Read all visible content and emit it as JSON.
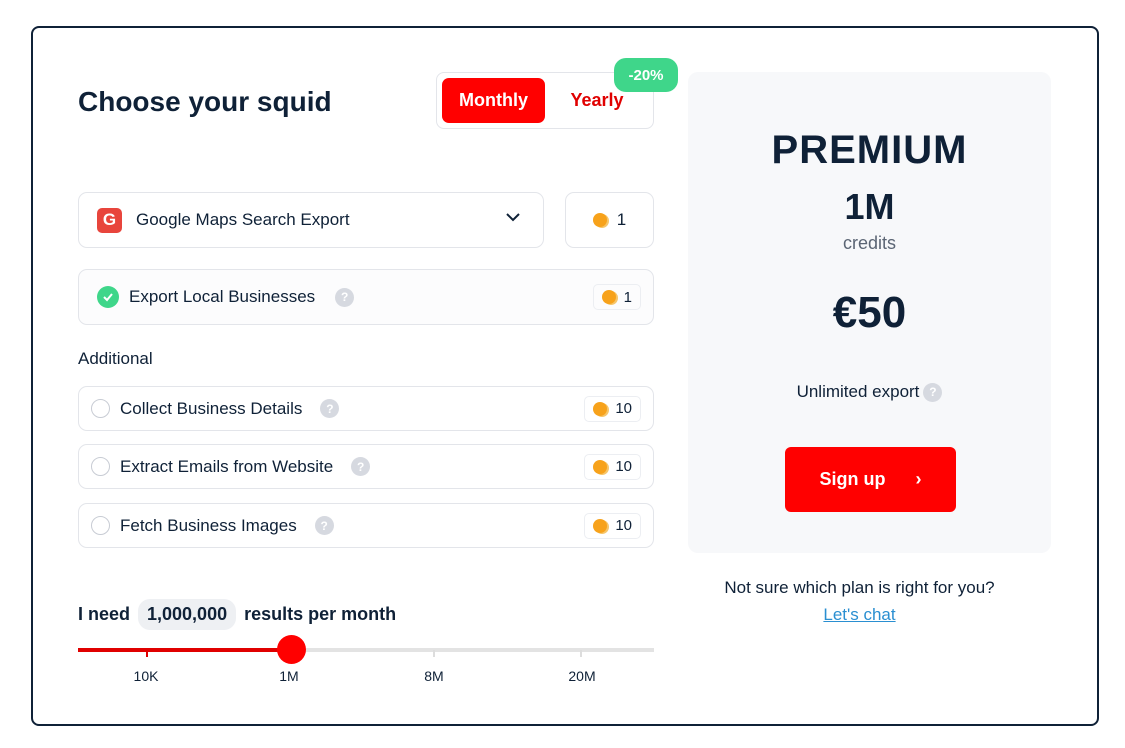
{
  "title": "Choose your squid",
  "billing": {
    "monthly": "Monthly",
    "yearly": "Yearly",
    "discount": "-20%",
    "selected": "Monthly"
  },
  "product": {
    "name": "Google Maps Search Export",
    "credits": "1",
    "icon": "google-g-icon"
  },
  "base": {
    "label": "Export Local Businesses",
    "credits": "1",
    "checked": true
  },
  "additional_label": "Additional",
  "additional": [
    {
      "label": "Collect Business Details",
      "credits": "10",
      "checked": false
    },
    {
      "label": "Extract Emails from Website",
      "credits": "10",
      "checked": false
    },
    {
      "label": "Fetch Business Images",
      "credits": "10",
      "checked": false
    }
  ],
  "results": {
    "prefix": "I need",
    "value": "1,000,000",
    "suffix": "results per month",
    "ticks": [
      "10K",
      "1M",
      "8M",
      "20M"
    ],
    "selected_tick": "1M"
  },
  "plan": {
    "name": "PREMIUM",
    "credits": "1M",
    "credits_label": "credits",
    "price": "€50",
    "feature": "Unlimited export",
    "cta": "Sign up"
  },
  "help": {
    "text": "Not sure which plan is right for you?",
    "link": "Let's chat"
  },
  "colors": {
    "accent": "#ff0000",
    "success": "#3fd68a",
    "coin": "#f7a21b"
  }
}
